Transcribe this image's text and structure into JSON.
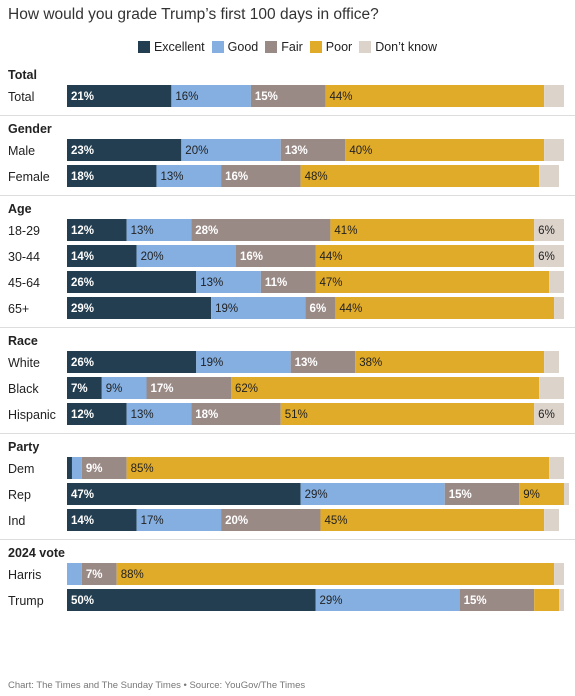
{
  "title": "How would you grade Trump’s first 100 days in office?",
  "source": "Chart: The Times and The Sunday Times • Source: YouGov/The Times",
  "colors": {
    "Excellent": "#233e50",
    "Good": "#84afe0",
    "Fair": "#9a8a86",
    "Poor": "#e1ab2a",
    "Don't know": "#dcd3cb"
  },
  "chart_data": {
    "type": "bar",
    "stacked": true,
    "orientation": "horizontal",
    "legend_position": "top",
    "categories_order": [
      "Excellent",
      "Good",
      "Fair",
      "Poor",
      "Don't know"
    ],
    "legend": [
      {
        "name": "Excellent",
        "color": "#233e50"
      },
      {
        "name": "Good",
        "color": "#84afe0"
      },
      {
        "name": "Fair",
        "color": "#9a8a86"
      },
      {
        "name": "Poor",
        "color": "#e1ab2a"
      },
      {
        "name": "Don’t know",
        "color": "#dcd3cb"
      }
    ],
    "groups": [
      {
        "name": "Total",
        "rows": [
          {
            "label": "Total",
            "values": [
              21,
              16,
              15,
              44,
              4
            ]
          }
        ]
      },
      {
        "name": "Gender",
        "rows": [
          {
            "label": "Male",
            "values": [
              23,
              20,
              13,
              40,
              4
            ]
          },
          {
            "label": "Female",
            "values": [
              18,
              13,
              16,
              48,
              4
            ]
          }
        ]
      },
      {
        "name": "Age",
        "rows": [
          {
            "label": "18-29",
            "values": [
              12,
              13,
              28,
              41,
              6
            ]
          },
          {
            "label": "30-44",
            "values": [
              14,
              20,
              16,
              44,
              6
            ]
          },
          {
            "label": "45-64",
            "values": [
              26,
              13,
              11,
              47,
              3
            ]
          },
          {
            "label": "65+",
            "values": [
              29,
              19,
              6,
              44,
              2
            ]
          }
        ]
      },
      {
        "name": "Race",
        "rows": [
          {
            "label": "White",
            "values": [
              26,
              19,
              13,
              38,
              3
            ]
          },
          {
            "label": "Black",
            "values": [
              7,
              9,
              17,
              62,
              5
            ]
          },
          {
            "label": "Hispanic",
            "values": [
              12,
              13,
              18,
              51,
              6
            ]
          }
        ]
      },
      {
        "name": "Party",
        "rows": [
          {
            "label": "Dem",
            "values": [
              1,
              2,
              9,
              85,
              3
            ]
          },
          {
            "label": "Rep",
            "values": [
              47,
              29,
              15,
              9,
              1
            ]
          },
          {
            "label": "Ind",
            "values": [
              14,
              17,
              20,
              45,
              3
            ]
          }
        ]
      },
      {
        "name": "2024 vote",
        "rows": [
          {
            "label": "Harris",
            "values": [
              0,
              3,
              7,
              88,
              2
            ]
          },
          {
            "label": "Trump",
            "values": [
              50,
              29,
              15,
              5,
              1
            ]
          }
        ]
      }
    ]
  }
}
